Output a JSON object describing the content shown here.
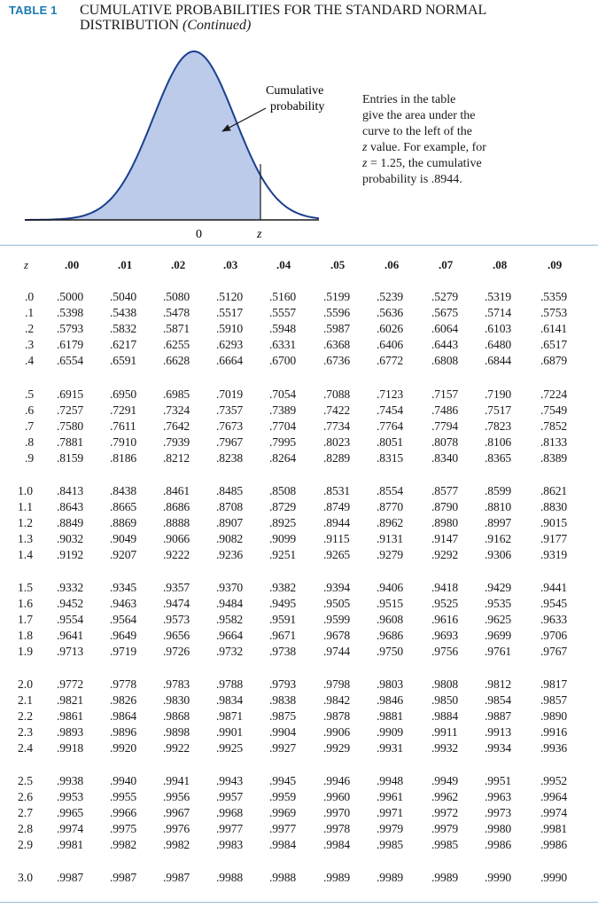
{
  "header": {
    "table_label": "TABLE 1",
    "title_line1": "CUMULATIVE PROBABILITIES FOR THE STANDARD NORMAL",
    "title_line2": "DISTRIBUTION",
    "title_continued": "(Continued)"
  },
  "figure": {
    "curve_label_line1": "Cumulative",
    "curve_label_line2": "probability",
    "zero_label": "0",
    "z_label": "z",
    "fill_color": "#bccbea",
    "curve_color": "#1b3f8f"
  },
  "note": {
    "line1": "Entries in the table",
    "line2": "give the area under the",
    "line3": "curve to the left of the",
    "line4_z": "z",
    "line4_rest": " value. For example, for",
    "line5_z": "z",
    "line5_rest": " = 1.25, the cumulative",
    "line6": "probability is .8944."
  },
  "table": {
    "z_header": "z",
    "columns": [
      ".00",
      ".01",
      ".02",
      ".03",
      ".04",
      ".05",
      ".06",
      ".07",
      ".08",
      ".09"
    ],
    "groups": [
      {
        "rows": [
          {
            "z": ".0",
            "values": [
              ".5000",
              ".5040",
              ".5080",
              ".5120",
              ".5160",
              ".5199",
              ".5239",
              ".5279",
              ".5319",
              ".5359"
            ]
          },
          {
            "z": ".1",
            "values": [
              ".5398",
              ".5438",
              ".5478",
              ".5517",
              ".5557",
              ".5596",
              ".5636",
              ".5675",
              ".5714",
              ".5753"
            ]
          },
          {
            "z": ".2",
            "values": [
              ".5793",
              ".5832",
              ".5871",
              ".5910",
              ".5948",
              ".5987",
              ".6026",
              ".6064",
              ".6103",
              ".6141"
            ]
          },
          {
            "z": ".3",
            "values": [
              ".6179",
              ".6217",
              ".6255",
              ".6293",
              ".6331",
              ".6368",
              ".6406",
              ".6443",
              ".6480",
              ".6517"
            ]
          },
          {
            "z": ".4",
            "values": [
              ".6554",
              ".6591",
              ".6628",
              ".6664",
              ".6700",
              ".6736",
              ".6772",
              ".6808",
              ".6844",
              ".6879"
            ]
          }
        ]
      },
      {
        "rows": [
          {
            "z": ".5",
            "values": [
              ".6915",
              ".6950",
              ".6985",
              ".7019",
              ".7054",
              ".7088",
              ".7123",
              ".7157",
              ".7190",
              ".7224"
            ]
          },
          {
            "z": ".6",
            "values": [
              ".7257",
              ".7291",
              ".7324",
              ".7357",
              ".7389",
              ".7422",
              ".7454",
              ".7486",
              ".7517",
              ".7549"
            ]
          },
          {
            "z": ".7",
            "values": [
              ".7580",
              ".7611",
              ".7642",
              ".7673",
              ".7704",
              ".7734",
              ".7764",
              ".7794",
              ".7823",
              ".7852"
            ]
          },
          {
            "z": ".8",
            "values": [
              ".7881",
              ".7910",
              ".7939",
              ".7967",
              ".7995",
              ".8023",
              ".8051",
              ".8078",
              ".8106",
              ".8133"
            ]
          },
          {
            "z": ".9",
            "values": [
              ".8159",
              ".8186",
              ".8212",
              ".8238",
              ".8264",
              ".8289",
              ".8315",
              ".8340",
              ".8365",
              ".8389"
            ]
          }
        ]
      },
      {
        "rows": [
          {
            "z": "1.0",
            "values": [
              ".8413",
              ".8438",
              ".8461",
              ".8485",
              ".8508",
              ".8531",
              ".8554",
              ".8577",
              ".8599",
              ".8621"
            ]
          },
          {
            "z": "1.1",
            "values": [
              ".8643",
              ".8665",
              ".8686",
              ".8708",
              ".8729",
              ".8749",
              ".8770",
              ".8790",
              ".8810",
              ".8830"
            ]
          },
          {
            "z": "1.2",
            "values": [
              ".8849",
              ".8869",
              ".8888",
              ".8907",
              ".8925",
              ".8944",
              ".8962",
              ".8980",
              ".8997",
              ".9015"
            ]
          },
          {
            "z": "1.3",
            "values": [
              ".9032",
              ".9049",
              ".9066",
              ".9082",
              ".9099",
              ".9115",
              ".9131",
              ".9147",
              ".9162",
              ".9177"
            ]
          },
          {
            "z": "1.4",
            "values": [
              ".9192",
              ".9207",
              ".9222",
              ".9236",
              ".9251",
              ".9265",
              ".9279",
              ".9292",
              ".9306",
              ".9319"
            ]
          }
        ]
      },
      {
        "rows": [
          {
            "z": "1.5",
            "values": [
              ".9332",
              ".9345",
              ".9357",
              ".9370",
              ".9382",
              ".9394",
              ".9406",
              ".9418",
              ".9429",
              ".9441"
            ]
          },
          {
            "z": "1.6",
            "values": [
              ".9452",
              ".9463",
              ".9474",
              ".9484",
              ".9495",
              ".9505",
              ".9515",
              ".9525",
              ".9535",
              ".9545"
            ]
          },
          {
            "z": "1.7",
            "values": [
              ".9554",
              ".9564",
              ".9573",
              ".9582",
              ".9591",
              ".9599",
              ".9608",
              ".9616",
              ".9625",
              ".9633"
            ]
          },
          {
            "z": "1.8",
            "values": [
              ".9641",
              ".9649",
              ".9656",
              ".9664",
              ".9671",
              ".9678",
              ".9686",
              ".9693",
              ".9699",
              ".9706"
            ]
          },
          {
            "z": "1.9",
            "values": [
              ".9713",
              ".9719",
              ".9726",
              ".9732",
              ".9738",
              ".9744",
              ".9750",
              ".9756",
              ".9761",
              ".9767"
            ]
          }
        ]
      },
      {
        "rows": [
          {
            "z": "2.0",
            "values": [
              ".9772",
              ".9778",
              ".9783",
              ".9788",
              ".9793",
              ".9798",
              ".9803",
              ".9808",
              ".9812",
              ".9817"
            ]
          },
          {
            "z": "2.1",
            "values": [
              ".9821",
              ".9826",
              ".9830",
              ".9834",
              ".9838",
              ".9842",
              ".9846",
              ".9850",
              ".9854",
              ".9857"
            ]
          },
          {
            "z": "2.2",
            "values": [
              ".9861",
              ".9864",
              ".9868",
              ".9871",
              ".9875",
              ".9878",
              ".9881",
              ".9884",
              ".9887",
              ".9890"
            ]
          },
          {
            "z": "2.3",
            "values": [
              ".9893",
              ".9896",
              ".9898",
              ".9901",
              ".9904",
              ".9906",
              ".9909",
              ".9911",
              ".9913",
              ".9916"
            ]
          },
          {
            "z": "2.4",
            "values": [
              ".9918",
              ".9920",
              ".9922",
              ".9925",
              ".9927",
              ".9929",
              ".9931",
              ".9932",
              ".9934",
              ".9936"
            ]
          }
        ]
      },
      {
        "rows": [
          {
            "z": "2.5",
            "values": [
              ".9938",
              ".9940",
              ".9941",
              ".9943",
              ".9945",
              ".9946",
              ".9948",
              ".9949",
              ".9951",
              ".9952"
            ]
          },
          {
            "z": "2.6",
            "values": [
              ".9953",
              ".9955",
              ".9956",
              ".9957",
              ".9959",
              ".9960",
              ".9961",
              ".9962",
              ".9963",
              ".9964"
            ]
          },
          {
            "z": "2.7",
            "values": [
              ".9965",
              ".9966",
              ".9967",
              ".9968",
              ".9969",
              ".9970",
              ".9971",
              ".9972",
              ".9973",
              ".9974"
            ]
          },
          {
            "z": "2.8",
            "values": [
              ".9974",
              ".9975",
              ".9976",
              ".9977",
              ".9977",
              ".9978",
              ".9979",
              ".9979",
              ".9980",
              ".9981"
            ]
          },
          {
            "z": "2.9",
            "values": [
              ".9981",
              ".9982",
              ".9982",
              ".9983",
              ".9984",
              ".9984",
              ".9985",
              ".9985",
              ".9986",
              ".9986"
            ]
          }
        ]
      },
      {
        "rows": [
          {
            "z": "3.0",
            "values": [
              ".9987",
              ".9987",
              ".9987",
              ".9988",
              ".9988",
              ".9989",
              ".9989",
              ".9989",
              ".9990",
              ".9990"
            ]
          }
        ]
      }
    ]
  }
}
